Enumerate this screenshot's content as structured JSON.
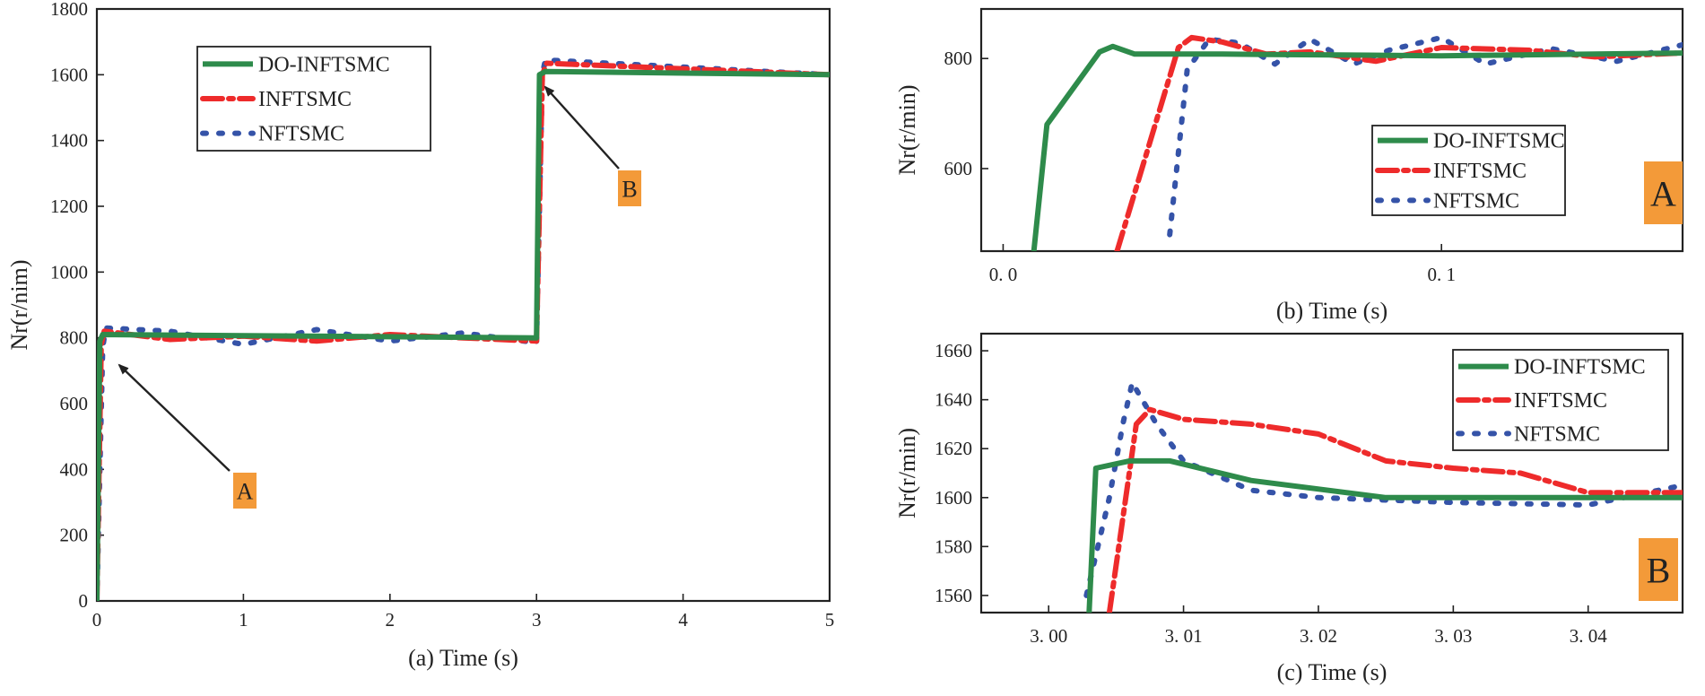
{
  "colors": {
    "do": "#2e8b4b",
    "in": "#ee2b2b",
    "nf": "#3553a8",
    "annotation_bg": "#f39a39"
  },
  "chart_data": [
    {
      "id": "a",
      "type": "line",
      "title": "",
      "xlabel": "(a) Time (s)",
      "ylabel": "Nr(r/nim)",
      "xlim": [
        0,
        5
      ],
      "ylim": [
        0,
        1800
      ],
      "xticks": [
        0,
        1,
        2,
        3,
        4,
        5
      ],
      "xtick_labels": [
        "0",
        "1",
        "2",
        "3",
        "4",
        "5"
      ],
      "yticks": [
        0,
        200,
        400,
        600,
        800,
        1000,
        1200,
        1400,
        1600,
        1800
      ],
      "ytick_labels": [
        "0",
        "200",
        "400",
        "600",
        "800",
        "1000",
        "1200",
        "1400",
        "1600",
        "1800"
      ],
      "legend": [
        "DO-INFTSMC",
        "INFTSMC",
        "NFTSMC"
      ],
      "legend_position": "top-left",
      "series": [
        {
          "name": "DO-INFTSMC",
          "x": [
            0,
            0.02,
            0.04,
            3.0,
            3.02,
            3.06,
            5.0
          ],
          "y": [
            0,
            790,
            810,
            800,
            1600,
            1610,
            1600
          ]
        },
        {
          "name": "INFTSMC",
          "x": [
            0,
            0.03,
            0.05,
            0.5,
            1.0,
            1.5,
            2.0,
            2.5,
            3.0,
            3.04,
            3.07,
            5.0
          ],
          "y": [
            0,
            780,
            820,
            795,
            805,
            790,
            810,
            800,
            790,
            1600,
            1635,
            1600
          ]
        },
        {
          "name": "NFTSMC",
          "x": [
            0,
            0.04,
            0.06,
            0.5,
            1.0,
            1.5,
            2.0,
            2.5,
            3.0,
            3.04,
            3.06,
            5.0
          ],
          "y": [
            0,
            770,
            830,
            820,
            780,
            825,
            790,
            815,
            785,
            1600,
            1645,
            1600
          ]
        }
      ],
      "annotations": [
        {
          "label": "A",
          "points_to": [
            0.1,
            790
          ]
        },
        {
          "label": "B",
          "points_to": [
            3.05,
            1590
          ]
        }
      ]
    },
    {
      "id": "b",
      "type": "line",
      "title": "",
      "xlabel": "(b) Time (s)",
      "ylabel": "Nr(r/min)",
      "xlim": [
        -0.005,
        0.155
      ],
      "ylim": [
        450,
        890
      ],
      "xticks": [
        0.0,
        0.1
      ],
      "xtick_labels": [
        "0. 0",
        "0. 1"
      ],
      "yticks": [
        600,
        800
      ],
      "ytick_labels": [
        "600",
        "800"
      ],
      "legend": [
        "DO-INFTSMC",
        "INFTSMC",
        "NFTSMC"
      ],
      "legend_position": "bottom-right",
      "series": [
        {
          "name": "DO-INFTSMC",
          "x": [
            0.007,
            0.01,
            0.022,
            0.025,
            0.03,
            0.05,
            0.1,
            0.155
          ],
          "y": [
            450,
            680,
            812,
            822,
            808,
            808,
            805,
            810
          ]
        },
        {
          "name": "INFTSMC",
          "x": [
            0.026,
            0.04,
            0.043,
            0.05,
            0.06,
            0.07,
            0.085,
            0.1,
            0.12,
            0.135,
            0.155
          ],
          "y": [
            450,
            820,
            838,
            830,
            808,
            812,
            795,
            820,
            815,
            803,
            810
          ]
        },
        {
          "name": "NFTSMC",
          "x": [
            0.038,
            0.042,
            0.047,
            0.054,
            0.062,
            0.07,
            0.08,
            0.088,
            0.1,
            0.11,
            0.125,
            0.14,
            0.155
          ],
          "y": [
            480,
            780,
            835,
            828,
            790,
            835,
            790,
            815,
            838,
            790,
            818,
            795,
            825
          ]
        }
      ],
      "annotations": [
        {
          "label": "A",
          "points_to": null
        }
      ]
    },
    {
      "id": "c",
      "type": "line",
      "title": "",
      "xlabel": "(c) Time (s)",
      "ylabel": "Nr(r/min)",
      "xlim": [
        2.995,
        3.047
      ],
      "ylim": [
        1553,
        1667
      ],
      "xticks": [
        3.0,
        3.01,
        3.02,
        3.03,
        3.04
      ],
      "xtick_labels": [
        "3. 00",
        "3. 01",
        "3. 02",
        "3. 03",
        "3. 04"
      ],
      "yticks": [
        1560,
        1580,
        1600,
        1620,
        1640,
        1660
      ],
      "ytick_labels": [
        "1560",
        "1580",
        "1600",
        "1620",
        "1640",
        "1660"
      ],
      "legend": [
        "DO-INFTSMC",
        "INFTSMC",
        "NFTSMC"
      ],
      "legend_position": "top-right",
      "series": [
        {
          "name": "DO-INFTSMC",
          "x": [
            3.003,
            3.0035,
            3.006,
            3.009,
            3.015,
            3.025,
            3.047
          ],
          "y": [
            1553,
            1612,
            1615,
            1615,
            1607,
            1600,
            1600
          ]
        },
        {
          "name": "INFTSMC",
          "x": [
            3.0045,
            3.0065,
            3.0075,
            3.01,
            3.015,
            3.02,
            3.025,
            3.03,
            3.035,
            3.04,
            3.047
          ],
          "y": [
            1553,
            1630,
            1636,
            1632,
            1630,
            1626,
            1615,
            1612,
            1610,
            1602,
            1602
          ]
        },
        {
          "name": "NFTSMC",
          "x": [
            3.0028,
            3.0045,
            3.0055,
            3.0062,
            3.008,
            3.01,
            3.015,
            3.02,
            3.03,
            3.04,
            3.047
          ],
          "y": [
            1560,
            1600,
            1630,
            1647,
            1630,
            1615,
            1603,
            1600,
            1598,
            1597,
            1605
          ]
        }
      ],
      "annotations": [
        {
          "label": "B",
          "points_to": null
        }
      ]
    }
  ]
}
